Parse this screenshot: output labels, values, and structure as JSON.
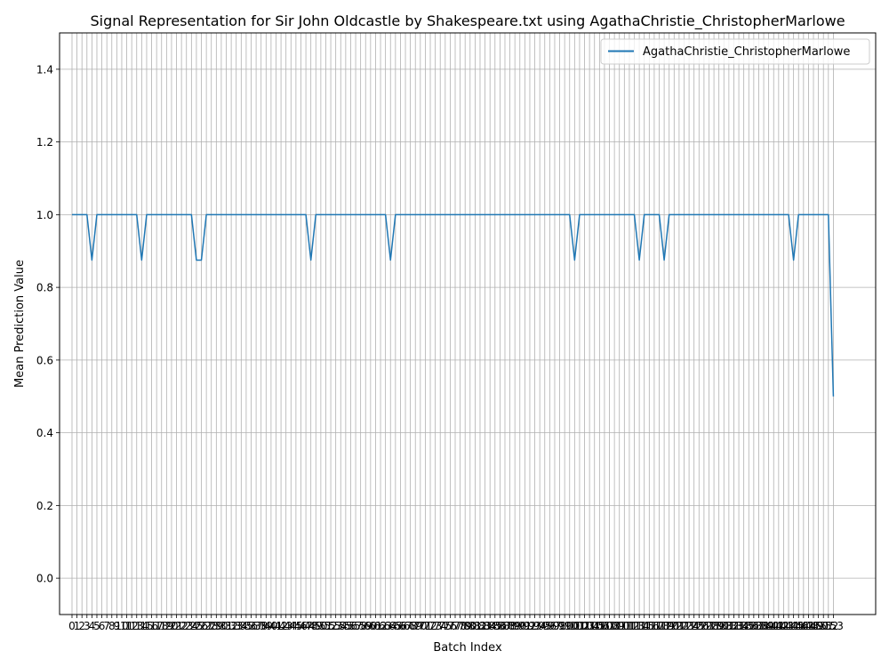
{
  "chart_data": {
    "type": "line",
    "title": "Signal Representation for Sir John Oldcastle by Shakespeare.txt using AgathaChristie_ChristopherMarlowe",
    "xlabel": "Batch Index",
    "ylabel": "Mean Prediction Value",
    "xlim": [
      -2.5,
      161.5
    ],
    "ylim": [
      -0.1,
      1.5
    ],
    "yticks": [
      0.0,
      0.2,
      0.4,
      0.6,
      0.8,
      1.0,
      1.2,
      1.4
    ],
    "grid": true,
    "legend_position": "top-right",
    "series": [
      {
        "name": "AgathaChristie_ChristopherMarlowe",
        "color": "#1f77b4",
        "x_range": [
          0,
          153
        ],
        "baseline": 1.0,
        "dips": [
          [
            4,
            0.875
          ],
          [
            14,
            0.875
          ],
          [
            25,
            0.875
          ],
          [
            26,
            0.875
          ],
          [
            48,
            0.875
          ],
          [
            64,
            0.875
          ],
          [
            101,
            0.875
          ],
          [
            114,
            0.875
          ],
          [
            119,
            0.875
          ],
          [
            145,
            0.875
          ],
          [
            153,
            0.5
          ]
        ]
      }
    ]
  }
}
